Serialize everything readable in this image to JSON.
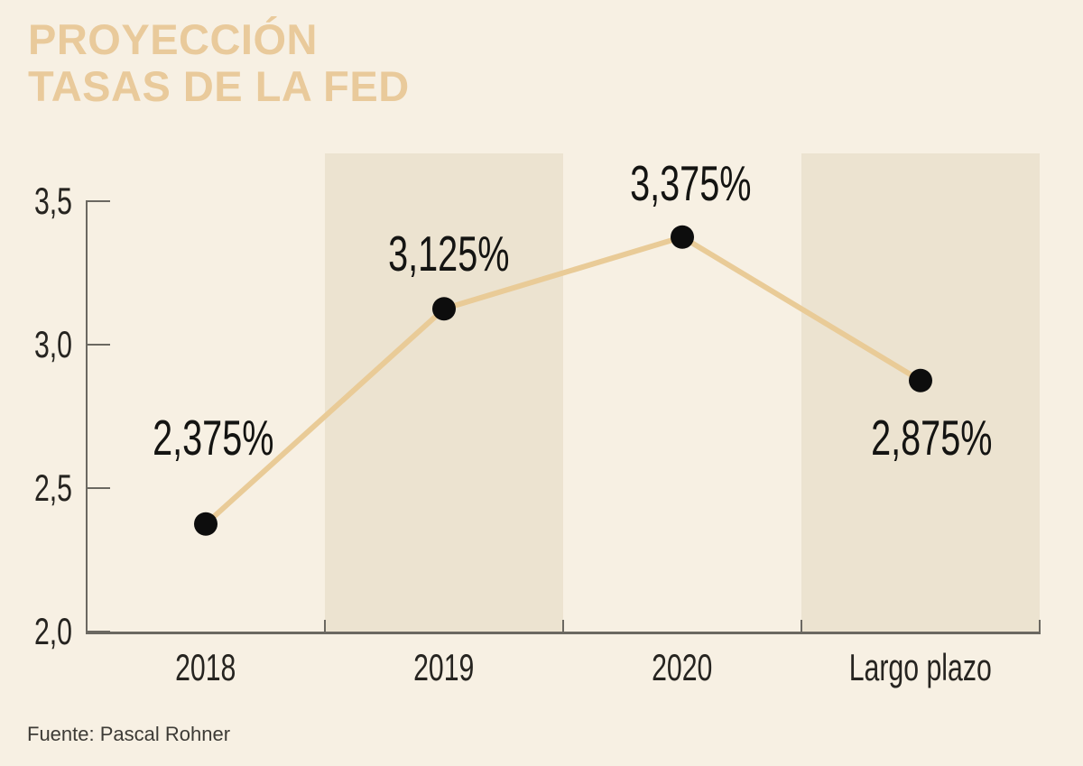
{
  "title": {
    "line1": "PROYECCIÓN",
    "line2": "TASAS DE LA FED"
  },
  "source": "Fuente: Pascal Rohner",
  "colors": {
    "background": "#f7f0e3",
    "band": "#ece3d0",
    "title_text": "#e9ca9b",
    "line": "#e9cb97",
    "marker": "#0d0d0d",
    "axis": "#6b6861",
    "label_text": "#141412",
    "source_text": "#3d3b36"
  },
  "chart_data": {
    "type": "line",
    "title": "PROYECCIÓN TASAS DE LA FED",
    "categories": [
      "2018",
      "2019",
      "2020",
      "Largo plazo"
    ],
    "values": [
      2.375,
      3.125,
      3.375,
      2.875
    ],
    "point_labels": [
      "2,375%",
      "3,125%",
      "3,375%",
      "2,875%"
    ],
    "ylim": [
      2.0,
      3.5
    ],
    "yticks": [
      3.5,
      3.0,
      2.5,
      2.0
    ],
    "ytick_labels": [
      "3,5",
      "3,0",
      "2,5",
      "2,0"
    ],
    "xlabel": "",
    "ylabel": "",
    "grid": false,
    "legend": false,
    "shaded_categories": [
      "2019",
      "Largo plazo"
    ],
    "source": "Fuente: Pascal Rohner"
  }
}
